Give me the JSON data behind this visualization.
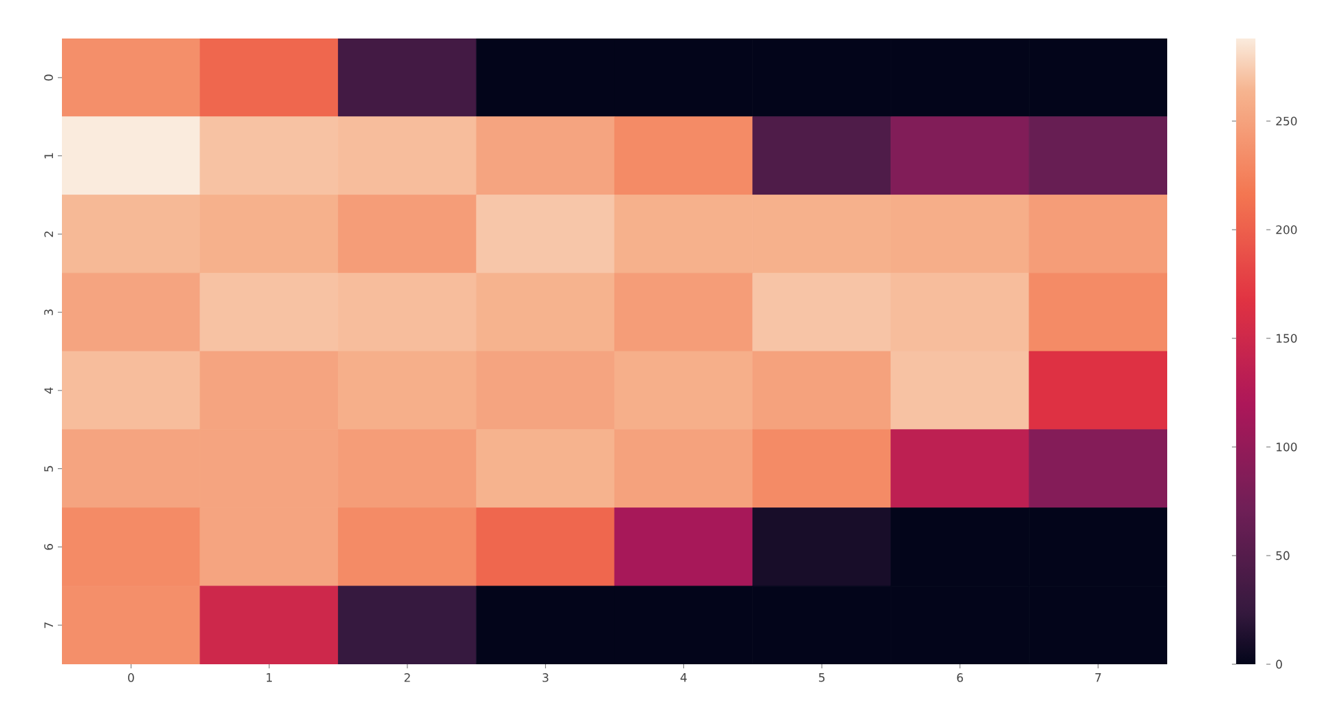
{
  "chart_data": {
    "type": "heatmap",
    "categories": [
      "0",
      "1",
      "2",
      "3",
      "4",
      "5",
      "6",
      "7"
    ],
    "y_categories": [
      "0",
      "1",
      "2",
      "3",
      "4",
      "5",
      "6",
      "7"
    ],
    "cells": [
      [
        235,
        205,
        35,
        0,
        0,
        0,
        0,
        0
      ],
      [
        288,
        270,
        268,
        252,
        232,
        45,
        85,
        65
      ],
      [
        266,
        262,
        246,
        272,
        262,
        262,
        259,
        246
      ],
      [
        252,
        270,
        268,
        263,
        246,
        271,
        268,
        232
      ],
      [
        268,
        252,
        260,
        252,
        260,
        250,
        270,
        165
      ],
      [
        252,
        252,
        246,
        263,
        250,
        232,
        135,
        88
      ],
      [
        232,
        252,
        232,
        205,
        115,
        10,
        0,
        0
      ],
      [
        235,
        150,
        25,
        0,
        0,
        0,
        0,
        0
      ]
    ],
    "clim": [
      0,
      288
    ],
    "cticks": [
      0,
      50,
      100,
      150,
      200,
      250
    ]
  }
}
